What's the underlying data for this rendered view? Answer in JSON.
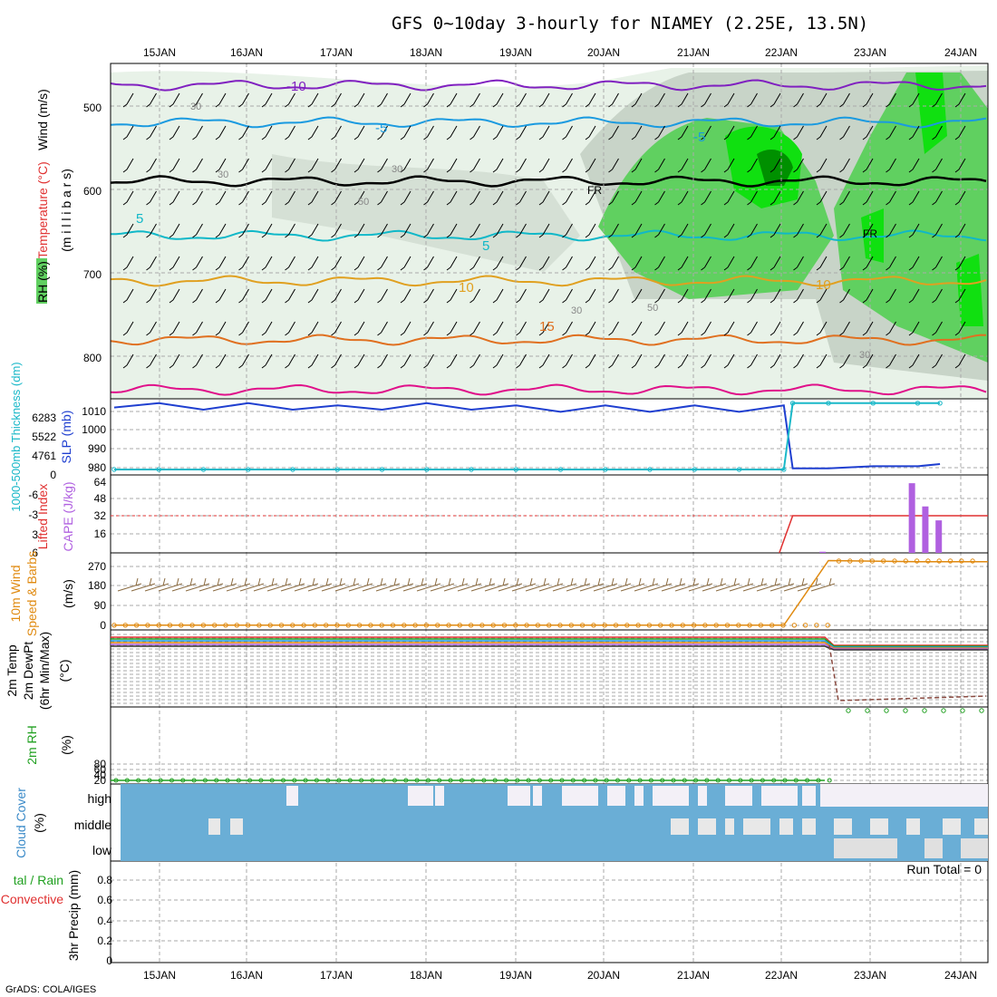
{
  "title": "GFS 0~10day 3-hourly for NIAMEY (2.25E, 13.5N)",
  "dates": [
    "15JAN",
    "16JAN",
    "17JAN",
    "18JAN",
    "19JAN",
    "20JAN",
    "21JAN",
    "22JAN",
    "23JAN",
    "24JAN"
  ],
  "footer": "GrADS: COLA/IGES",
  "panels": {
    "upper": {
      "ylabel_wind": "Wind (m/s)",
      "ylabel_temp": "Temperature (°C)",
      "ylabel_mb": "(m i l l i b a r s)",
      "ylabel_rh": "RH (%)",
      "yticks": [
        "500",
        "600",
        "700",
        "800"
      ],
      "fr_label": "FR",
      "contour_labels": [
        "-10",
        "-5",
        "-5",
        "5",
        "5",
        "10",
        "10",
        "15",
        "30",
        "30",
        "30",
        "50",
        "50",
        "30",
        "30"
      ]
    },
    "slp": {
      "ylabel_slp": "SLP (mb)",
      "ylabel_thick": "1000-500mb Thickness (dm)",
      "yticks": [
        "1010",
        "1000",
        "990",
        "980"
      ],
      "thick_ticks": [
        "6283",
        "5522",
        "4761",
        "0"
      ]
    },
    "lifted": {
      "ylabel_li": "Lifted Index",
      "ylabel_cape": "CAPE (J/kg)",
      "li_ticks": [
        "-6",
        "-3",
        "0",
        "3",
        "6"
      ],
      "cape_ticks": [
        "64",
        "48",
        "32",
        "16"
      ]
    },
    "wind10": {
      "ylabel_a": "10m Wind",
      "ylabel_b": "Speed & Barbs",
      "ylabel_units": "(m/s)",
      "yticks": [
        "270",
        "180",
        "90",
        "0"
      ]
    },
    "temp2m": {
      "ylabel_a": "2m Temp",
      "ylabel_b": "2m DewPt",
      "ylabel_c": "(6hr Min/Max)",
      "ylabel_units": "(°C)"
    },
    "rh2m": {
      "ylabel": "2m RH",
      "ylabel_units": "(%)",
      "yticks": [
        "80",
        "60",
        "40",
        "20"
      ]
    },
    "cloud": {
      "ylabel": "Cloud Cover",
      "ylabel_units": "(%)",
      "levels": [
        "high",
        "middle",
        "low"
      ]
    },
    "precip": {
      "ylabel_a": "tal / Rain",
      "ylabel_b": "Convective",
      "ylabel_c": "3hr Precip (mm)",
      "yticks": [
        "0.8",
        "0.6",
        "0.4",
        "0.2",
        "0"
      ],
      "run_total": "Run Total = 0"
    }
  },
  "colors": {
    "slp": "#1f3fd0",
    "thickness": "#1ab8c8",
    "lifted": "#e03030",
    "cape": "#b060e0",
    "wind_speed": "#e08a10",
    "rh2m": "#20a020",
    "cloud": "#6aaed6",
    "cloud_clear": "#f3f0f7",
    "rh_light": "#e8f2e8",
    "rh_mid": "#c8d4c8",
    "rh_dark": "#a0aca0",
    "rh_green": "#60d060",
    "rh_bright": "#10e010",
    "rh_deep": "#009000",
    "t_m10": "#8020c0",
    "t_m5": "#1a9ae0",
    "t_5": "#10b8c8",
    "t_10": "#e0a020",
    "t_15": "#e07020",
    "t_pink": "#e0108a"
  },
  "chart_data": [
    {
      "type": "line",
      "title": "SLP (mb)",
      "x": [
        "15JAN 00",
        "15JAN 12",
        "16JAN 00",
        "16JAN 12",
        "17JAN 00",
        "17JAN 12",
        "18JAN 00",
        "18JAN 12",
        "19JAN 00",
        "19JAN 12",
        "20JAN 00",
        "20JAN 12",
        "21JAN 00",
        "21JAN 12",
        "22JAN 00",
        "22JAN 12",
        "22JAN 15",
        "23JAN 00",
        "23JAN 12",
        "24JAN 00",
        "24JAN 06"
      ],
      "series": [
        {
          "name": "SLP (mb)",
          "values": [
            1009,
            1011,
            1008,
            1011,
            1008,
            1010,
            1008,
            1011,
            1008,
            1010,
            1007,
            1010,
            1007,
            1010,
            1007,
            1010,
            981,
            981,
            982,
            982,
            983
          ]
        },
        {
          "name": "1000-500mb Thickness (dm)",
          "values": [
            980.5,
            980.5,
            980.5,
            980.5,
            980.5,
            980.5,
            980.5,
            980.5,
            980.5,
            980.5,
            980.5,
            980.5,
            980.5,
            980.5,
            980.5,
            980.5,
            1011,
            1011,
            1011,
            1011,
            1011
          ]
        }
      ],
      "ylim": [
        978,
        1013
      ]
    },
    {
      "type": "bar",
      "title": "CAPE (J/kg)",
      "categories": [
        "23JAN 00",
        "24JAN 00",
        "24JAN 03",
        "24JAN 06"
      ],
      "values": [
        1,
        60,
        40,
        28
      ],
      "ylim": [
        0,
        64
      ]
    },
    {
      "type": "line",
      "title": "10m Wind Speed",
      "x": [
        "15JAN",
        "16JAN",
        "17JAN",
        "18JAN",
        "19JAN",
        "20JAN",
        "21JAN",
        "22JAN",
        "22JAN 12",
        "23JAN",
        "24JAN"
      ],
      "values": [
        5,
        5,
        5,
        5,
        5,
        5,
        5,
        5,
        5,
        290,
        285
      ],
      "ylim": [
        0,
        300
      ]
    }
  ]
}
